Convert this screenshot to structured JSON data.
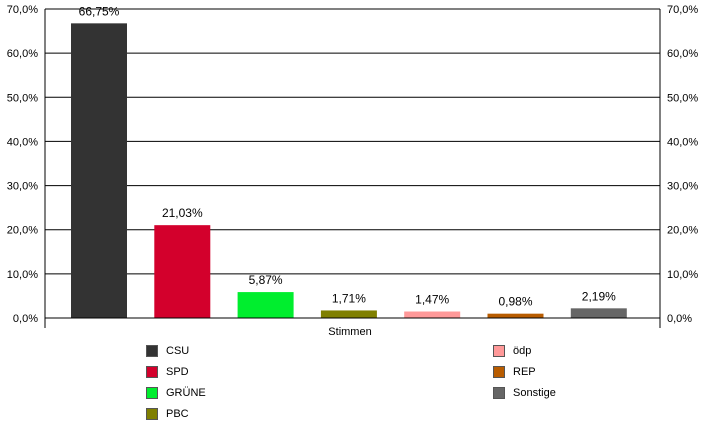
{
  "chart_data": {
    "type": "bar",
    "xlabel": "Stimmen",
    "ylim": [
      0,
      70
    ],
    "yticks": [
      "0,0%",
      "10,0%",
      "20,0%",
      "30,0%",
      "40,0%",
      "50,0%",
      "60,0%",
      "70,0%"
    ],
    "grid": true,
    "legend_position": "bottom",
    "series": [
      {
        "name": "CSU",
        "value": 66.75,
        "label": "66,75%",
        "color": "#333333"
      },
      {
        "name": "SPD",
        "value": 21.03,
        "label": "21,03%",
        "color": "#d3002c"
      },
      {
        "name": "GRÜNE",
        "value": 5.87,
        "label": "5,87%",
        "color": "#00ee2e"
      },
      {
        "name": "PBC",
        "value": 1.71,
        "label": "1,71%",
        "color": "#7f7f00"
      },
      {
        "name": "ödp",
        "value": 1.47,
        "label": "1,47%",
        "color": "#ff9999"
      },
      {
        "name": "REP",
        "value": 0.98,
        "label": "0,98%",
        "color": "#b85c00"
      },
      {
        "name": "Sonstige",
        "value": 2.19,
        "label": "2,19%",
        "color": "#666666"
      }
    ]
  }
}
